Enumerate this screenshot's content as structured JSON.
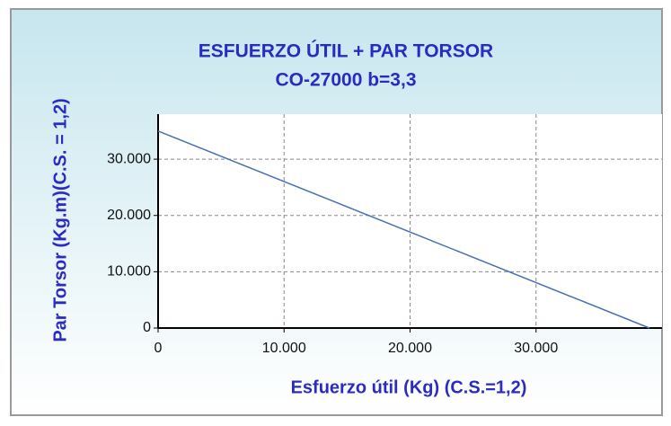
{
  "chart_data": {
    "type": "line",
    "title": "ESFUERZO ÚTIL + PAR TORSOR",
    "subtitle": "CO-27000 b=3,3",
    "x_label": "Esfuerzo útil (Kg) (C.S.=1,2)",
    "y_label": "Par Torsor (Kg.m)(C.S. = 1,2)",
    "x": [
      0,
      39000
    ],
    "series": [
      {
        "name": "Par Torsor",
        "color": "#4a6fb5",
        "values": [
          35000,
          0
        ]
      }
    ],
    "xlim": [
      0,
      40000
    ],
    "xticks": [
      0,
      {
        "value": 10000,
        "label": "10.000"
      },
      {
        "value": 20000,
        "label": "20.000"
      },
      {
        "value": 30000,
        "label": "30.000"
      }
    ],
    "ylim": [
      0,
      38000
    ],
    "yticks": [
      0,
      {
        "value": 10000,
        "label": "10.000"
      },
      {
        "value": 20000,
        "label": "20.000"
      },
      {
        "value": 30000,
        "label": "30.000"
      }
    ],
    "grid": true
  }
}
